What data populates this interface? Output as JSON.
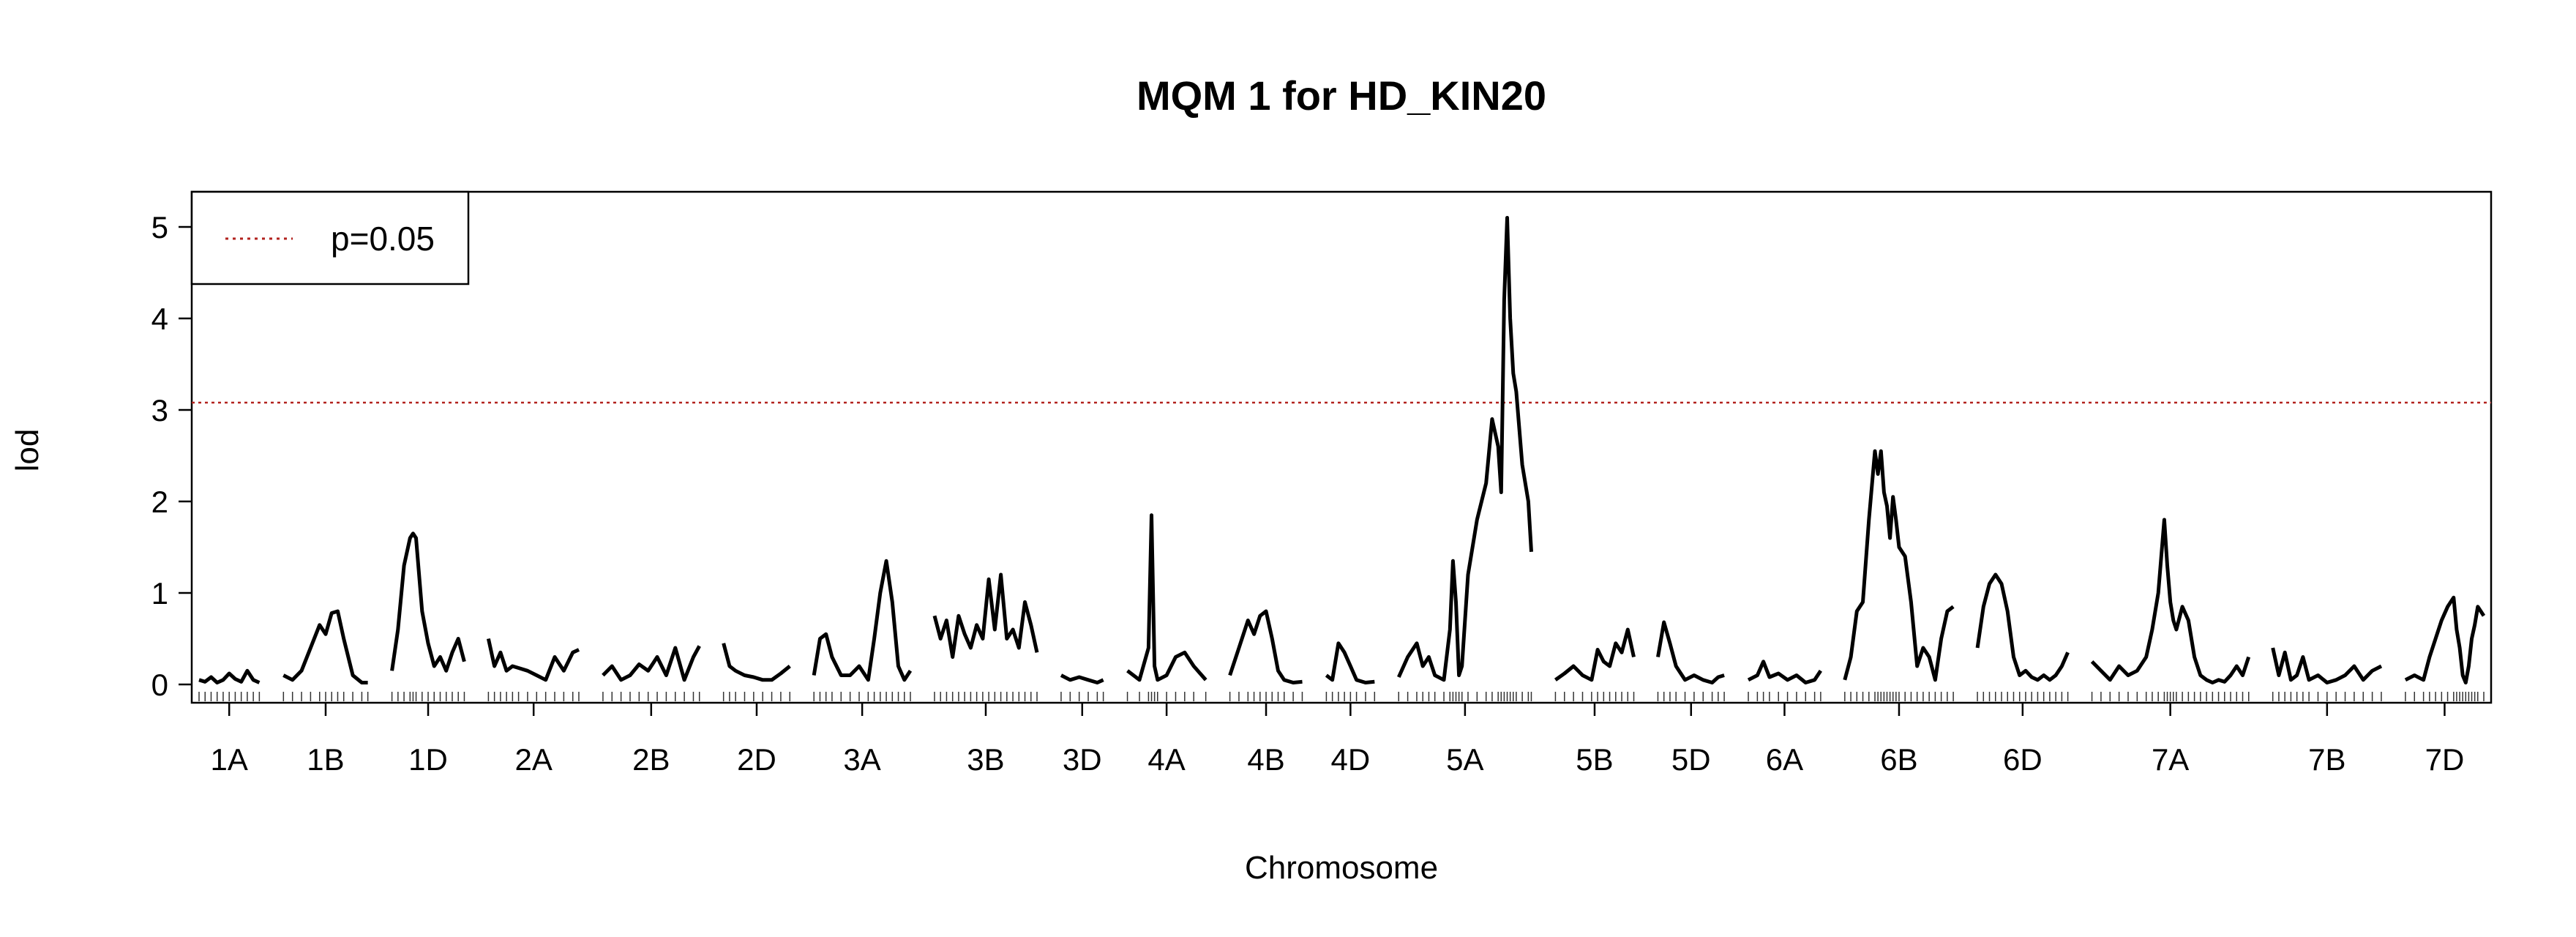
{
  "chart_data": {
    "type": "line",
    "title": "MQM 1 for HD_KIN20",
    "xlabel": "Chromosome",
    "ylabel": "lod",
    "ylim": [
      0,
      5.2
    ],
    "yticks": [
      0,
      1,
      2,
      3,
      4,
      5
    ],
    "threshold": {
      "label": "p=0.05",
      "value": 3.08,
      "color": "#b2221e"
    },
    "legend": {
      "position": "top-left",
      "entries": [
        "p=0.05"
      ]
    },
    "chromosomes": [
      "1A",
      "1B",
      "1D",
      "2A",
      "2B",
      "2D",
      "3A",
      "3B",
      "3D",
      "4A",
      "4B",
      "4D",
      "5A",
      "5B",
      "5D",
      "6A",
      "6B",
      "6D",
      "7A",
      "7B",
      "7D"
    ],
    "chromosome_lengths": [
      20,
      28,
      24,
      30,
      32,
      22,
      32,
      34,
      14,
      26,
      24,
      16,
      44,
      26,
      22,
      24,
      36,
      30,
      52,
      36,
      26
    ],
    "series": [
      {
        "chromosome": "1A",
        "position": [
          0,
          2,
          4,
          6,
          8,
          10,
          12,
          14,
          16,
          18,
          20
        ],
        "lod": [
          0.05,
          0.03,
          0.08,
          0.02,
          0.05,
          0.12,
          0.06,
          0.03,
          0.15,
          0.05,
          0.02
        ]
      },
      {
        "chromosome": "1B",
        "position": [
          0,
          3,
          6,
          9,
          12,
          14,
          16,
          18,
          20,
          23,
          26,
          28
        ],
        "lod": [
          0.1,
          0.05,
          0.15,
          0.4,
          0.65,
          0.55,
          0.78,
          0.8,
          0.5,
          0.1,
          0.02,
          0.02
        ]
      },
      {
        "chromosome": "1D",
        "position": [
          0,
          2,
          4,
          6,
          7,
          8,
          10,
          12,
          14,
          16,
          18,
          20,
          22,
          24
        ],
        "lod": [
          0.15,
          0.6,
          1.3,
          1.6,
          1.65,
          1.6,
          0.8,
          0.45,
          0.2,
          0.3,
          0.15,
          0.35,
          0.5,
          0.25
        ]
      },
      {
        "chromosome": "2A",
        "position": [
          0,
          2,
          4,
          6,
          8,
          10,
          13,
          16,
          19,
          22,
          25,
          28,
          30
        ],
        "lod": [
          0.5,
          0.2,
          0.35,
          0.15,
          0.2,
          0.18,
          0.15,
          0.1,
          0.05,
          0.3,
          0.15,
          0.35,
          0.38
        ]
      },
      {
        "chromosome": "2B",
        "position": [
          0,
          3,
          6,
          9,
          12,
          15,
          18,
          21,
          24,
          27,
          30,
          32
        ],
        "lod": [
          0.1,
          0.2,
          0.05,
          0.1,
          0.22,
          0.15,
          0.3,
          0.1,
          0.4,
          0.05,
          0.3,
          0.42
        ]
      },
      {
        "chromosome": "2D",
        "position": [
          0,
          2,
          4,
          7,
          10,
          13,
          16,
          19,
          22
        ],
        "lod": [
          0.45,
          0.2,
          0.15,
          0.1,
          0.08,
          0.05,
          0.05,
          0.12,
          0.2
        ]
      },
      {
        "chromosome": "3A",
        "position": [
          0,
          2,
          4,
          6,
          9,
          12,
          15,
          18,
          20,
          22,
          24,
          26,
          28,
          30,
          32
        ],
        "lod": [
          0.1,
          0.5,
          0.55,
          0.3,
          0.1,
          0.1,
          0.2,
          0.05,
          0.5,
          1.0,
          1.35,
          0.9,
          0.2,
          0.05,
          0.15
        ]
      },
      {
        "chromosome": "3B",
        "position": [
          0,
          2,
          4,
          6,
          8,
          10,
          12,
          14,
          16,
          18,
          20,
          22,
          24,
          26,
          28,
          30,
          32,
          34
        ],
        "lod": [
          0.75,
          0.5,
          0.7,
          0.3,
          0.75,
          0.55,
          0.4,
          0.65,
          0.5,
          1.15,
          0.6,
          1.2,
          0.5,
          0.6,
          0.4,
          0.9,
          0.65,
          0.35
        ]
      },
      {
        "chromosome": "3D",
        "position": [
          0,
          3,
          6,
          9,
          12,
          14
        ],
        "lod": [
          0.1,
          0.05,
          0.08,
          0.05,
          0.02,
          0.05
        ]
      },
      {
        "chromosome": "4A",
        "position": [
          0,
          4,
          7,
          8,
          9,
          10,
          13,
          16,
          19,
          22,
          26
        ],
        "lod": [
          0.15,
          0.05,
          0.4,
          1.85,
          0.2,
          0.05,
          0.1,
          0.3,
          0.35,
          0.2,
          0.05
        ]
      },
      {
        "chromosome": "4B",
        "position": [
          0,
          3,
          6,
          8,
          10,
          12,
          14,
          16,
          18,
          21,
          24
        ],
        "lod": [
          0.1,
          0.4,
          0.7,
          0.55,
          0.75,
          0.8,
          0.5,
          0.15,
          0.05,
          0.02,
          0.03
        ]
      },
      {
        "chromosome": "4D",
        "position": [
          0,
          2,
          4,
          6,
          8,
          10,
          13,
          16
        ],
        "lod": [
          0.1,
          0.05,
          0.45,
          0.35,
          0.2,
          0.05,
          0.02,
          0.03
        ]
      },
      {
        "chromosome": "5A",
        "position": [
          0,
          3,
          6,
          8,
          10,
          12,
          15,
          17,
          18,
          19,
          20,
          21,
          23,
          26,
          29,
          31,
          33,
          34,
          35,
          36,
          37,
          38,
          39,
          41,
          43,
          44
        ],
        "lod": [
          0.08,
          0.3,
          0.45,
          0.2,
          0.3,
          0.1,
          0.05,
          0.6,
          1.35,
          0.9,
          0.1,
          0.2,
          1.2,
          1.8,
          2.2,
          2.9,
          2.6,
          2.1,
          4.2,
          5.1,
          4.0,
          3.4,
          3.2,
          2.4,
          2.0,
          1.45
        ]
      },
      {
        "chromosome": "5B",
        "position": [
          0,
          3,
          6,
          9,
          12,
          14,
          16,
          18,
          20,
          22,
          24,
          26
        ],
        "lod": [
          0.05,
          0.12,
          0.2,
          0.1,
          0.05,
          0.38,
          0.25,
          0.2,
          0.45,
          0.35,
          0.6,
          0.3
        ]
      },
      {
        "chromosome": "5D",
        "position": [
          0,
          2,
          4,
          6,
          9,
          12,
          15,
          18,
          20,
          22
        ],
        "lod": [
          0.3,
          0.68,
          0.45,
          0.2,
          0.05,
          0.1,
          0.05,
          0.02,
          0.08,
          0.1
        ]
      },
      {
        "chromosome": "6A",
        "position": [
          0,
          3,
          5,
          7,
          10,
          13,
          16,
          19,
          22,
          24
        ],
        "lod": [
          0.05,
          0.1,
          0.25,
          0.08,
          0.12,
          0.05,
          0.1,
          0.02,
          0.05,
          0.15
        ]
      },
      {
        "chromosome": "6B",
        "position": [
          0,
          2,
          4,
          6,
          8,
          10,
          11,
          12,
          13,
          14,
          15,
          16,
          17,
          18,
          20,
          22,
          24,
          26,
          28,
          30,
          32,
          34,
          36
        ],
        "lod": [
          0.05,
          0.3,
          0.8,
          0.9,
          1.8,
          2.55,
          2.3,
          2.55,
          2.1,
          1.95,
          1.6,
          2.05,
          1.8,
          1.5,
          1.4,
          0.9,
          0.2,
          0.4,
          0.3,
          0.05,
          0.5,
          0.8,
          0.85
        ]
      },
      {
        "chromosome": "6D",
        "position": [
          0,
          2,
          4,
          6,
          8,
          10,
          12,
          14,
          16,
          18,
          20,
          22,
          24,
          26,
          28,
          30
        ],
        "lod": [
          0.4,
          0.85,
          1.1,
          1.2,
          1.1,
          0.8,
          0.3,
          0.1,
          0.15,
          0.08,
          0.05,
          0.1,
          0.05,
          0.1,
          0.2,
          0.35
        ]
      },
      {
        "chromosome": "7A",
        "position": [
          0,
          3,
          6,
          9,
          12,
          15,
          18,
          20,
          22,
          24,
          25,
          26,
          27,
          28,
          30,
          32,
          34,
          36,
          38,
          40,
          42,
          44,
          46,
          48,
          50,
          52
        ],
        "lod": [
          0.25,
          0.15,
          0.05,
          0.2,
          0.1,
          0.15,
          0.3,
          0.6,
          1.0,
          1.8,
          1.3,
          0.9,
          0.7,
          0.6,
          0.85,
          0.7,
          0.3,
          0.1,
          0.05,
          0.02,
          0.05,
          0.03,
          0.1,
          0.2,
          0.1,
          0.3
        ]
      },
      {
        "chromosome": "7B",
        "position": [
          0,
          2,
          4,
          6,
          8,
          10,
          12,
          15,
          18,
          21,
          24,
          27,
          30,
          33,
          36
        ],
        "lod": [
          0.4,
          0.1,
          0.35,
          0.05,
          0.1,
          0.3,
          0.05,
          0.1,
          0.02,
          0.05,
          0.1,
          0.2,
          0.05,
          0.15,
          0.2
        ]
      },
      {
        "chromosome": "7D",
        "position": [
          0,
          3,
          6,
          8,
          10,
          12,
          14,
          16,
          17,
          18,
          19,
          20,
          21,
          22,
          23,
          24,
          26
        ],
        "lod": [
          0.05,
          0.1,
          0.05,
          0.3,
          0.5,
          0.7,
          0.85,
          0.95,
          0.6,
          0.4,
          0.1,
          0.02,
          0.2,
          0.5,
          0.65,
          0.85,
          0.75
        ]
      }
    ]
  }
}
